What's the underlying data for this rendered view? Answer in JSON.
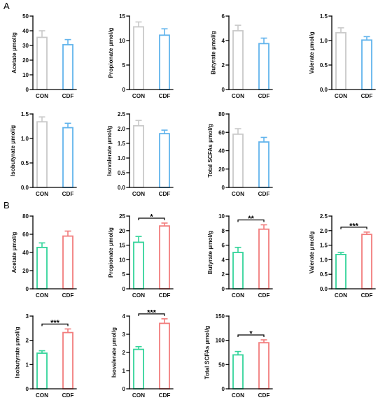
{
  "panels": [
    {
      "label": "A"
    },
    {
      "label": "B"
    }
  ],
  "chart_data": [
    {
      "type": "bar",
      "ylabel": "Acetate μmol/g",
      "categories": [
        "CON",
        "CDF"
      ],
      "values": [
        35.5,
        30.5
      ],
      "errors": [
        4.5,
        3.5
      ],
      "ylim": [
        0,
        50
      ],
      "yticks": [
        "0",
        "10",
        "20",
        "30",
        "40",
        "50"
      ],
      "grid": false,
      "colors": [
        "#c9c9c9",
        "#62b4ec"
      ]
    },
    {
      "type": "bar",
      "ylabel": "Propionate μmol/g",
      "categories": [
        "CON",
        "CDF"
      ],
      "values": [
        12.8,
        11.1
      ],
      "errors": [
        1.0,
        1.3
      ],
      "ylim": [
        0,
        15
      ],
      "yticks": [
        "0",
        "5",
        "10",
        "15"
      ],
      "grid": false,
      "colors": [
        "#c9c9c9",
        "#62b4ec"
      ]
    },
    {
      "type": "bar",
      "ylabel": "Butyrate μmol/g",
      "categories": [
        "CON",
        "CDF"
      ],
      "values": [
        4.8,
        3.75
      ],
      "errors": [
        0.45,
        0.45
      ],
      "ylim": [
        0,
        6
      ],
      "yticks": [
        "0",
        "2",
        "4",
        "6"
      ],
      "grid": false,
      "colors": [
        "#c9c9c9",
        "#62b4ec"
      ]
    },
    {
      "type": "bar",
      "ylabel": "Valerate μmol/g",
      "categories": [
        "CON",
        "CDF"
      ],
      "values": [
        1.16,
        1.01
      ],
      "errors": [
        0.1,
        0.07
      ],
      "ylim": [
        0,
        1.5
      ],
      "yticks": [
        "0.0",
        "0.5",
        "1.0",
        "1.5"
      ],
      "grid": false,
      "colors": [
        "#c9c9c9",
        "#62b4ec"
      ]
    },
    {
      "type": "bar",
      "ylabel": "Isobutyrate μmol/g",
      "categories": [
        "CON",
        "CDF"
      ],
      "values": [
        1.34,
        1.22
      ],
      "errors": [
        0.1,
        0.09
      ],
      "ylim": [
        0,
        1.5
      ],
      "yticks": [
        "0.0",
        "0.5",
        "1.0",
        "1.5"
      ],
      "grid": false,
      "colors": [
        "#c9c9c9",
        "#62b4ec"
      ]
    },
    {
      "type": "bar",
      "ylabel": "Isovalerate μmol/g",
      "categories": [
        "CON",
        "CDF"
      ],
      "values": [
        2.1,
        1.83
      ],
      "errors": [
        0.18,
        0.12
      ],
      "ylim": [
        0,
        2.5
      ],
      "yticks": [
        "0.0",
        "0.5",
        "1.0",
        "1.5",
        "2.0",
        "2.5"
      ],
      "grid": false,
      "colors": [
        "#c9c9c9",
        "#62b4ec"
      ]
    },
    {
      "type": "bar",
      "ylabel": "Total SCFAs μmol/g",
      "categories": [
        "CON",
        "CDF"
      ],
      "values": [
        58,
        49.5
      ],
      "errors": [
        6,
        5
      ],
      "ylim": [
        0,
        80
      ],
      "yticks": [
        "0",
        "20",
        "40",
        "60",
        "80"
      ],
      "grid": false,
      "colors": [
        "#c9c9c9",
        "#62b4ec"
      ]
    },
    {
      "type": "bar",
      "ylabel": "Acetate μmol/g",
      "categories": [
        "CON",
        "CDF"
      ],
      "values": [
        45.5,
        58
      ],
      "errors": [
        5,
        5.5
      ],
      "ylim": [
        0,
        80
      ],
      "yticks": [
        "0",
        "20",
        "40",
        "60",
        "80"
      ],
      "grid": false,
      "colors": [
        "#33d49a",
        "#f27d7d"
      ]
    },
    {
      "type": "bar",
      "ylabel": "Propionate μmol/g",
      "categories": [
        "CON",
        "CDF"
      ],
      "values": [
        16,
        21.6
      ],
      "errors": [
        2,
        1
      ],
      "ylim": [
        0,
        25
      ],
      "yticks": [
        "0",
        "5",
        "10",
        "15",
        "20",
        "25"
      ],
      "grid": false,
      "colors": [
        "#33d49a",
        "#f27d7d"
      ],
      "significance": "*"
    },
    {
      "type": "bar",
      "ylabel": "Butyrate μmol/g",
      "categories": [
        "CON",
        "CDF"
      ],
      "values": [
        5.0,
        8.2
      ],
      "errors": [
        0.7,
        0.6
      ],
      "ylim": [
        0,
        10
      ],
      "yticks": [
        "0",
        "2",
        "4",
        "6",
        "8",
        "10"
      ],
      "grid": false,
      "colors": [
        "#33d49a",
        "#f27d7d"
      ],
      "significance": "**"
    },
    {
      "type": "bar",
      "ylabel": "Valerate μmol/g",
      "categories": [
        "CON",
        "CDF"
      ],
      "values": [
        1.18,
        1.87
      ],
      "errors": [
        0.07,
        0.08
      ],
      "ylim": [
        0,
        2.5
      ],
      "yticks": [
        "0.0",
        "0.5",
        "1.0",
        "1.5",
        "2.0",
        "2.5"
      ],
      "grid": false,
      "colors": [
        "#33d49a",
        "#f27d7d"
      ],
      "significance": "***"
    },
    {
      "type": "bar",
      "ylabel": "Isobutyrate μmol/g",
      "categories": [
        "CON",
        "CDF"
      ],
      "values": [
        1.47,
        2.32
      ],
      "errors": [
        0.1,
        0.15
      ],
      "ylim": [
        0,
        3
      ],
      "yticks": [
        "0",
        "1",
        "2",
        "3"
      ],
      "grid": false,
      "colors": [
        "#33d49a",
        "#f27d7d"
      ],
      "significance": "***"
    },
    {
      "type": "bar",
      "ylabel": "Isovalerate μmol/g",
      "categories": [
        "CON",
        "CDF"
      ],
      "values": [
        2.17,
        3.6
      ],
      "errors": [
        0.15,
        0.25
      ],
      "ylim": [
        0,
        4
      ],
      "yticks": [
        "0",
        "1",
        "2",
        "3",
        "4"
      ],
      "grid": false,
      "colors": [
        "#33d49a",
        "#f27d7d"
      ],
      "significance": "***"
    },
    {
      "type": "bar",
      "ylabel": "Total SCFAs μmol/g",
      "categories": [
        "CON",
        "CDF"
      ],
      "values": [
        70,
        95
      ],
      "errors": [
        7,
        6
      ],
      "ylim": [
        0,
        150
      ],
      "yticks": [
        "0",
        "50",
        "100",
        "150"
      ],
      "grid": false,
      "colors": [
        "#33d49a",
        "#f27d7d"
      ],
      "significance": "*"
    }
  ]
}
